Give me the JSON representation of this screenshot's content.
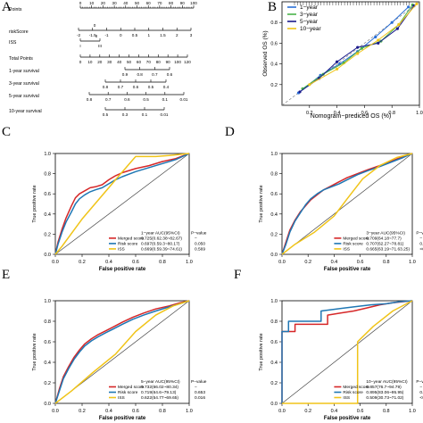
{
  "panel_labels": [
    "A",
    "B",
    "C",
    "D",
    "E",
    "F"
  ],
  "chart_data": [
    {
      "panel": "A",
      "type": "table",
      "rows": [
        {
          "name": "Points",
          "ticks": [
            "0",
            "10",
            "20",
            "30",
            "40",
            "50",
            "60",
            "70",
            "80",
            "90",
            "100"
          ]
        },
        {
          "name": "riskScore",
          "ticks": [
            "-2",
            "-1.5",
            "-1",
            "0",
            "0.5",
            "1",
            "1.5",
            "2",
            "3"
          ],
          "subticks": [
            "0"
          ]
        },
        {
          "name": "ISS",
          "ticks": [
            "I",
            "III"
          ],
          "subticks": [
            "II"
          ]
        },
        {
          "name": "Total Points",
          "ticks": [
            "0",
            "10",
            "20",
            "30",
            "40",
            "50",
            "60",
            "70",
            "80",
            "90",
            "100",
            "120"
          ]
        },
        {
          "name": "1-year survival",
          "ticks": [
            "0.9",
            "0.8",
            "0.7",
            "0.6"
          ]
        },
        {
          "name": "3-year survival",
          "ticks": [
            "0.8",
            "0.7",
            "0.6",
            "0.5",
            "0.4"
          ]
        },
        {
          "name": "5-year survival",
          "ticks": [
            "0.8",
            "0.7",
            "0.6",
            "0.5",
            "0.1",
            "0.01"
          ]
        },
        {
          "name": "10-year survival",
          "ticks": [
            "0.5",
            "0.3",
            "0.1",
            "0.01"
          ]
        }
      ]
    },
    {
      "panel": "B",
      "type": "line",
      "xlabel": "Nomogram−prediced OS (%)",
      "ylabel": "Observed OS (%)",
      "xlim": [
        0,
        1
      ],
      "ylim": [
        0,
        1
      ],
      "x_ticks": [
        "0.2",
        "0.4",
        "0.6",
        "0.8",
        "1.0"
      ],
      "y_ticks": [
        "0.2",
        "0.4",
        "0.6",
        "0.8"
      ],
      "legend_position": "top-left",
      "series": [
        {
          "name": "1−year",
          "color": "#2a6fd6",
          "x": [
            0.12,
            0.28,
            0.42,
            0.55,
            0.68,
            0.8,
            0.92
          ],
          "y": [
            0.12,
            0.29,
            0.4,
            0.52,
            0.66,
            0.8,
            0.95
          ]
        },
        {
          "name": "3−year",
          "color": "#49b24a",
          "x": [
            0.15,
            0.3,
            0.45,
            0.58,
            0.72,
            0.85,
            0.95
          ],
          "y": [
            0.16,
            0.3,
            0.41,
            0.55,
            0.62,
            0.78,
            0.97
          ]
        },
        {
          "name": "5−year",
          "color": "#1a1a8c",
          "x": [
            0.13,
            0.27,
            0.4,
            0.55,
            0.7,
            0.84,
            0.96
          ],
          "y": [
            0.13,
            0.26,
            0.42,
            0.56,
            0.6,
            0.74,
            0.96
          ]
        },
        {
          "name": "10−year",
          "color": "#f0c419",
          "x": [
            0.2,
            0.4,
            0.55,
            0.7,
            0.85,
            0.98
          ],
          "y": [
            0.2,
            0.35,
            0.5,
            0.63,
            0.78,
            0.98
          ]
        }
      ]
    },
    {
      "panel": "C",
      "type": "line",
      "xlabel": "False positive rate",
      "ylabel": "True positive rate",
      "xlim": [
        0,
        1
      ],
      "ylim": [
        0,
        1
      ],
      "x_ticks": [
        "0.0",
        "0.2",
        "0.4",
        "0.6",
        "0.8",
        "1.0"
      ],
      "y_ticks": [
        "0.0",
        "0.2",
        "0.4",
        "0.6",
        "0.8",
        "1.0"
      ],
      "legend_header": [
        "1−year AUC(95%CI)",
        "P−value"
      ],
      "series": [
        {
          "name": "Merged score",
          "color": "#d62728",
          "auc": "0.725(0.62.38~82.67)",
          "p": "−",
          "x": [
            0,
            0.02,
            0.05,
            0.08,
            0.12,
            0.15,
            0.18,
            0.22,
            0.26,
            0.3,
            0.35,
            0.4,
            0.45,
            0.5,
            0.6,
            0.7,
            0.8,
            0.9,
            1
          ],
          "y": [
            0,
            0.12,
            0.25,
            0.36,
            0.48,
            0.56,
            0.6,
            0.63,
            0.66,
            0.67,
            0.69,
            0.74,
            0.78,
            0.81,
            0.85,
            0.88,
            0.92,
            0.95,
            1
          ]
        },
        {
          "name": "Risk score",
          "color": "#1f77b4",
          "auc": "0.697(0.59.3~80.17)",
          "p": "0.050",
          "x": [
            0,
            0.02,
            0.05,
            0.08,
            0.12,
            0.15,
            0.18,
            0.22,
            0.26,
            0.3,
            0.35,
            0.4,
            0.45,
            0.5,
            0.6,
            0.7,
            0.8,
            0.9,
            1
          ],
          "y": [
            0,
            0.1,
            0.22,
            0.32,
            0.42,
            0.5,
            0.55,
            0.59,
            0.62,
            0.64,
            0.66,
            0.7,
            0.74,
            0.77,
            0.82,
            0.86,
            0.9,
            0.94,
            1
          ]
        },
        {
          "name": "ISS",
          "color": "#f0c419",
          "auc": "0.669(0.59.39~74.61)",
          "p": "0.569",
          "x": [
            0,
            0.05,
            0.2,
            0.45,
            0.6,
            0.75,
            0.85,
            1
          ],
          "y": [
            0,
            0.08,
            0.35,
            0.74,
            0.97,
            0.97,
            0.98,
            1
          ]
        }
      ]
    },
    {
      "panel": "D",
      "type": "line",
      "xlabel": "False positive rate",
      "ylabel": "True positive rate",
      "xlim": [
        0,
        1
      ],
      "ylim": [
        0,
        1
      ],
      "x_ticks": [
        "0.0",
        "0.2",
        "0.4",
        "0.6",
        "0.8",
        "1.0"
      ],
      "y_ticks": [
        "0.0",
        "0.2",
        "0.4",
        "0.6",
        "0.8",
        "1.0"
      ],
      "legend_header": [
        "3−year AUC(95%CI)",
        "P−value"
      ],
      "series": [
        {
          "name": "Merged score",
          "color": "#d62728",
          "auc": "0.709(64.18~77.7)",
          "p": "−",
          "x": [
            0,
            0.03,
            0.06,
            0.1,
            0.14,
            0.18,
            0.22,
            0.27,
            0.32,
            0.38,
            0.44,
            0.5,
            0.58,
            0.66,
            0.75,
            0.85,
            0.93,
            1
          ],
          "y": [
            0,
            0.12,
            0.24,
            0.34,
            0.42,
            0.48,
            0.54,
            0.59,
            0.64,
            0.68,
            0.72,
            0.76,
            0.8,
            0.84,
            0.88,
            0.93,
            0.97,
            1
          ]
        },
        {
          "name": "Risk score",
          "color": "#1f77b4",
          "auc": "0.707(62.27~78.81)",
          "p": "0.801",
          "x": [
            0,
            0.03,
            0.06,
            0.1,
            0.14,
            0.18,
            0.22,
            0.27,
            0.32,
            0.38,
            0.44,
            0.5,
            0.58,
            0.66,
            0.75,
            0.85,
            0.93,
            1
          ],
          "y": [
            0,
            0.1,
            0.22,
            0.33,
            0.41,
            0.49,
            0.55,
            0.6,
            0.64,
            0.67,
            0.7,
            0.74,
            0.79,
            0.83,
            0.87,
            0.92,
            0.96,
            1
          ]
        },
        {
          "name": "ISS",
          "color": "#f0c419",
          "auc": "0.665(63.19~71.63.25)",
          "p": "<0.001",
          "x": [
            0,
            0.1,
            0.25,
            0.4,
            0.5,
            0.62,
            0.75,
            0.88,
            1
          ],
          "y": [
            0,
            0.1,
            0.22,
            0.38,
            0.55,
            0.75,
            0.88,
            0.96,
            1
          ]
        }
      ]
    },
    {
      "panel": "E",
      "type": "line",
      "xlabel": "False positive rate",
      "ylabel": "True positive rate",
      "xlim": [
        0,
        1
      ],
      "ylim": [
        0,
        1
      ],
      "x_ticks": [
        "0.0",
        "0.2",
        "0.4",
        "0.6",
        "0.8",
        "1.0"
      ],
      "y_ticks": [
        "0.0",
        "0.2",
        "0.4",
        "0.6",
        "0.8",
        "1.0"
      ],
      "legend_header": [
        "5−year AUC(95%CI)",
        "P−value"
      ],
      "series": [
        {
          "name": "Merged score",
          "color": "#d62728",
          "auc": "0.732(66.02~80.34)",
          "p": "−",
          "x": [
            0,
            0.03,
            0.06,
            0.1,
            0.14,
            0.18,
            0.22,
            0.27,
            0.32,
            0.38,
            0.44,
            0.5,
            0.58,
            0.66,
            0.75,
            0.85,
            0.93,
            1
          ],
          "y": [
            0,
            0.14,
            0.26,
            0.36,
            0.45,
            0.52,
            0.58,
            0.63,
            0.67,
            0.71,
            0.75,
            0.79,
            0.84,
            0.88,
            0.92,
            0.95,
            0.98,
            1
          ]
        },
        {
          "name": "Risk score",
          "color": "#1f77b4",
          "auc": "0.719(64.6~79.13)",
          "p": "0.653",
          "x": [
            0,
            0.03,
            0.06,
            0.1,
            0.14,
            0.18,
            0.22,
            0.27,
            0.32,
            0.38,
            0.44,
            0.5,
            0.58,
            0.66,
            0.75,
            0.85,
            0.93,
            1
          ],
          "y": [
            0,
            0.12,
            0.24,
            0.34,
            0.43,
            0.5,
            0.56,
            0.61,
            0.65,
            0.69,
            0.73,
            0.77,
            0.82,
            0.86,
            0.9,
            0.94,
            0.97,
            1
          ]
        },
        {
          "name": "ISS",
          "color": "#f0c419",
          "auc": "0.622(54.77~69.65)",
          "p": "0.016",
          "x": [
            0,
            0.12,
            0.28,
            0.45,
            0.6,
            0.75,
            0.88,
            1
          ],
          "y": [
            0,
            0.12,
            0.3,
            0.48,
            0.7,
            0.86,
            0.95,
            1
          ]
        }
      ]
    },
    {
      "panel": "F",
      "type": "line",
      "xlabel": "False positive rate",
      "ylabel": "True positive rate",
      "xlim": [
        0,
        1
      ],
      "ylim": [
        0,
        1
      ],
      "x_ticks": [
        "0.0",
        "0.2",
        "0.4",
        "0.6",
        "0.8",
        "1.0"
      ],
      "y_ticks": [
        "0.0",
        "0.2",
        "0.4",
        "0.6",
        "0.8",
        "1.0"
      ],
      "legend_header": [
        "10−year AUC(95%CI)",
        "P−value"
      ],
      "series": [
        {
          "name": "Merged score",
          "color": "#d62728",
          "auc": "0.857(76.7~94.79)",
          "p": "−",
          "x": [
            0,
            0,
            0.1,
            0.1,
            0.35,
            0.35,
            0.45,
            0.55,
            0.65,
            0.75,
            0.85,
            1
          ],
          "y": [
            0,
            0.7,
            0.7,
            0.77,
            0.77,
            0.86,
            0.88,
            0.9,
            0.93,
            0.96,
            0.98,
            1
          ]
        },
        {
          "name": "Risk score",
          "color": "#1f77b4",
          "auc": "0.895(83.06~95.95)",
          "p": "0.502",
          "x": [
            0,
            0,
            0.05,
            0.05,
            0.3,
            0.3,
            0.42,
            0.55,
            0.68,
            0.8,
            0.9,
            1
          ],
          "y": [
            0,
            0.7,
            0.7,
            0.8,
            0.8,
            0.9,
            0.92,
            0.94,
            0.96,
            0.97,
            0.99,
            1
          ]
        },
        {
          "name": "ISS",
          "color": "#f0c419",
          "auc": "0.509(30.73~71.02)",
          "p": "<0.001",
          "x": [
            0,
            0.58,
            0.58,
            0.7,
            0.85,
            1
          ],
          "y": [
            0,
            0.0,
            0.6,
            0.75,
            0.9,
            1
          ]
        }
      ]
    }
  ]
}
